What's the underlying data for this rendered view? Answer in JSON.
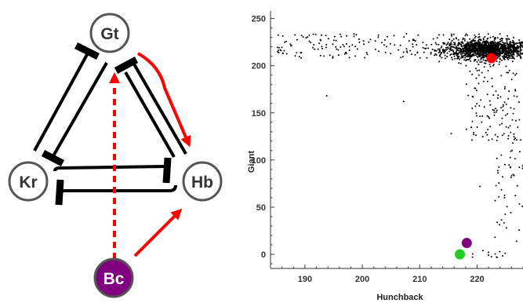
{
  "network": {
    "nodes": [
      {
        "id": "gt",
        "label": "Gt"
      },
      {
        "id": "kr",
        "label": "Kr"
      },
      {
        "id": "hb",
        "label": "Hb"
      },
      {
        "id": "bc",
        "label": "Bc"
      }
    ],
    "colors": {
      "node_stroke": "#555555",
      "bc_fill": "#800080",
      "activation": "#ff0000",
      "repression": "#000000"
    }
  },
  "chart_data": {
    "type": "scatter",
    "xlabel": "Hunchback",
    "ylabel": "Giant",
    "xlim": [
      184,
      228
    ],
    "ylim": [
      -15,
      258
    ],
    "xticks": [
      190,
      200,
      210,
      220
    ],
    "yticks": [
      0,
      50,
      100,
      150,
      200,
      250
    ],
    "highlights": [
      {
        "x": 222.5,
        "y": 208,
        "color": "#ff0000"
      },
      {
        "x": 218.2,
        "y": 12,
        "color": "#800080"
      },
      {
        "x": 217.0,
        "y": 0,
        "color": "#22cc22"
      }
    ]
  }
}
